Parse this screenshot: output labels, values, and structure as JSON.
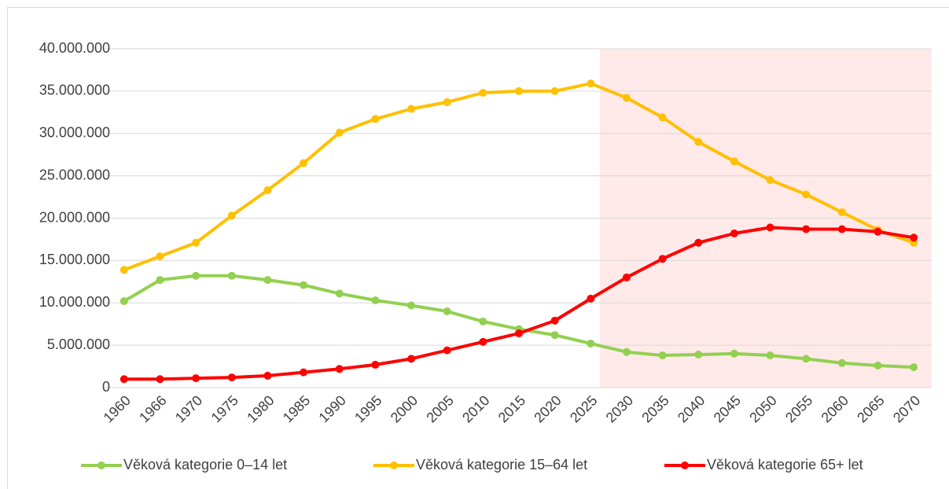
{
  "chart_data": {
    "type": "line",
    "categories": [
      "1960",
      "1966",
      "1970",
      "1975",
      "1980",
      "1985",
      "1990",
      "1995",
      "2000",
      "2005",
      "2010",
      "2015",
      "2020",
      "2025",
      "2030",
      "2035",
      "2040",
      "2045",
      "2050",
      "2055",
      "2060",
      "2065",
      "2070"
    ],
    "series": [
      {
        "name": "Věková kategorie 0–14 let",
        "color": "#92d050",
        "values": [
          10200000,
          12700000,
          13200000,
          13200000,
          12700000,
          12100000,
          11100000,
          10300000,
          9700000,
          9000000,
          7800000,
          6900000,
          6200000,
          5200000,
          4200000,
          3800000,
          3900000,
          4000000,
          3800000,
          3400000,
          2900000,
          2600000,
          2400000
        ]
      },
      {
        "name": "Věková kategorie 15–64 let",
        "color": "#ffc000",
        "values": [
          13900000,
          15500000,
          17100000,
          20300000,
          23300000,
          26500000,
          30100000,
          31700000,
          32900000,
          33700000,
          34800000,
          35000000,
          35000000,
          35900000,
          34200000,
          31900000,
          29000000,
          26700000,
          24500000,
          22800000,
          20700000,
          18600000,
          17100000
        ]
      },
      {
        "name": "Věková kategorie 65+ let",
        "color": "#ff0000",
        "values": [
          1000000,
          1000000,
          1100000,
          1200000,
          1400000,
          1800000,
          2200000,
          2700000,
          3400000,
          4400000,
          5400000,
          6400000,
          7900000,
          10500000,
          13000000,
          15200000,
          17100000,
          18200000,
          18900000,
          18700000,
          18700000,
          18400000,
          17700000
        ]
      }
    ],
    "ylim": [
      0,
      40000000
    ],
    "yticks": [
      0,
      {
        "value": 5000000,
        "label": "5.000.000"
      },
      {
        "value": 10000000,
        "label": "10.000.000"
      },
      {
        "value": 15000000,
        "label": "15.000.000"
      },
      {
        "value": 20000000,
        "label": "20.000.000"
      },
      {
        "value": 25000000,
        "label": "25.000.000"
      },
      {
        "value": 30000000,
        "label": "30.000.000"
      },
      {
        "value": 35000000,
        "label": "35.000.000"
      },
      {
        "value": 40000000,
        "label": "40.000.000"
      }
    ],
    "grid": true,
    "legend": "bottom"
  }
}
